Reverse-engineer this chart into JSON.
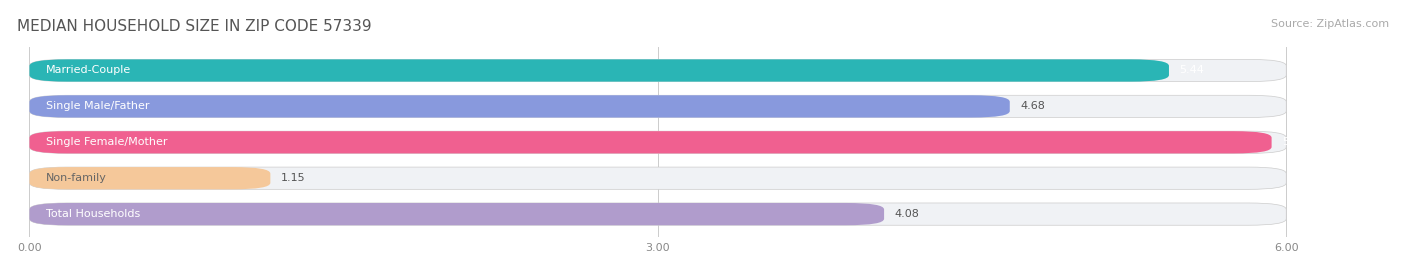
{
  "title": "MEDIAN HOUSEHOLD SIZE IN ZIP CODE 57339",
  "source": "Source: ZipAtlas.com",
  "categories": [
    "Married-Couple",
    "Single Male/Father",
    "Single Female/Mother",
    "Non-family",
    "Total Households"
  ],
  "values": [
    5.44,
    4.68,
    5.93,
    1.15,
    4.08
  ],
  "bar_colors": [
    "#2ab5b5",
    "#8899dd",
    "#f06090",
    "#f5c89a",
    "#b09ccc"
  ],
  "bar_bg_color": "#f0f2f5",
  "xlim": [
    0,
    6.0
  ],
  "xtick_labels": [
    "0.00",
    "3.00",
    "6.00"
  ],
  "xtick_vals": [
    0.0,
    3.0,
    6.0
  ],
  "title_fontsize": 11,
  "source_fontsize": 8,
  "label_fontsize": 8,
  "value_fontsize": 8,
  "background_color": "#ffffff",
  "bar_height": 0.62
}
